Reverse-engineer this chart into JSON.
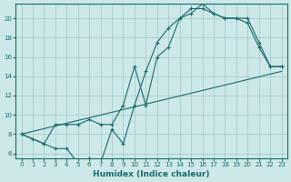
{
  "xlabel": "Humidex (Indice chaleur)",
  "bg_color": "#cce8e8",
  "grid_color": "#aacccc",
  "line_color": "#1a6b6b",
  "xlim": [
    -0.5,
    23.5
  ],
  "ylim": [
    5.5,
    21.5
  ],
  "xticks": [
    0,
    1,
    2,
    3,
    4,
    5,
    6,
    7,
    8,
    9,
    10,
    11,
    12,
    13,
    14,
    15,
    16,
    17,
    18,
    19,
    20,
    21,
    22,
    23
  ],
  "yticks": [
    6,
    8,
    10,
    12,
    14,
    16,
    18,
    20
  ],
  "curve1_x": [
    0,
    1,
    2,
    3,
    4,
    5,
    6,
    7,
    8,
    9,
    10,
    11,
    12,
    13,
    14,
    15,
    16,
    17,
    18,
    19,
    20,
    21,
    22,
    23
  ],
  "curve1_y": [
    8,
    7.5,
    7,
    6.5,
    6.5,
    5,
    5.5,
    5,
    8.5,
    7,
    11,
    14.5,
    17.5,
    19,
    20,
    20.5,
    21.5,
    20.5,
    20,
    20,
    19.5,
    17,
    15,
    15
  ],
  "curve2_x": [
    0,
    2,
    3,
    4,
    5,
    6,
    7,
    8,
    9,
    10,
    11,
    12,
    13,
    14,
    15,
    16,
    17,
    18,
    19,
    20,
    21,
    22,
    23
  ],
  "curve2_y": [
    8,
    7,
    9,
    9,
    9,
    9.5,
    9,
    9,
    11,
    15,
    11,
    16,
    17,
    20,
    21,
    21,
    20.5,
    20,
    20,
    20,
    17.5,
    15,
    15
  ],
  "curve3_x": [
    0,
    23
  ],
  "curve3_y": [
    8,
    14.5
  ],
  "marker_size": 2.5
}
